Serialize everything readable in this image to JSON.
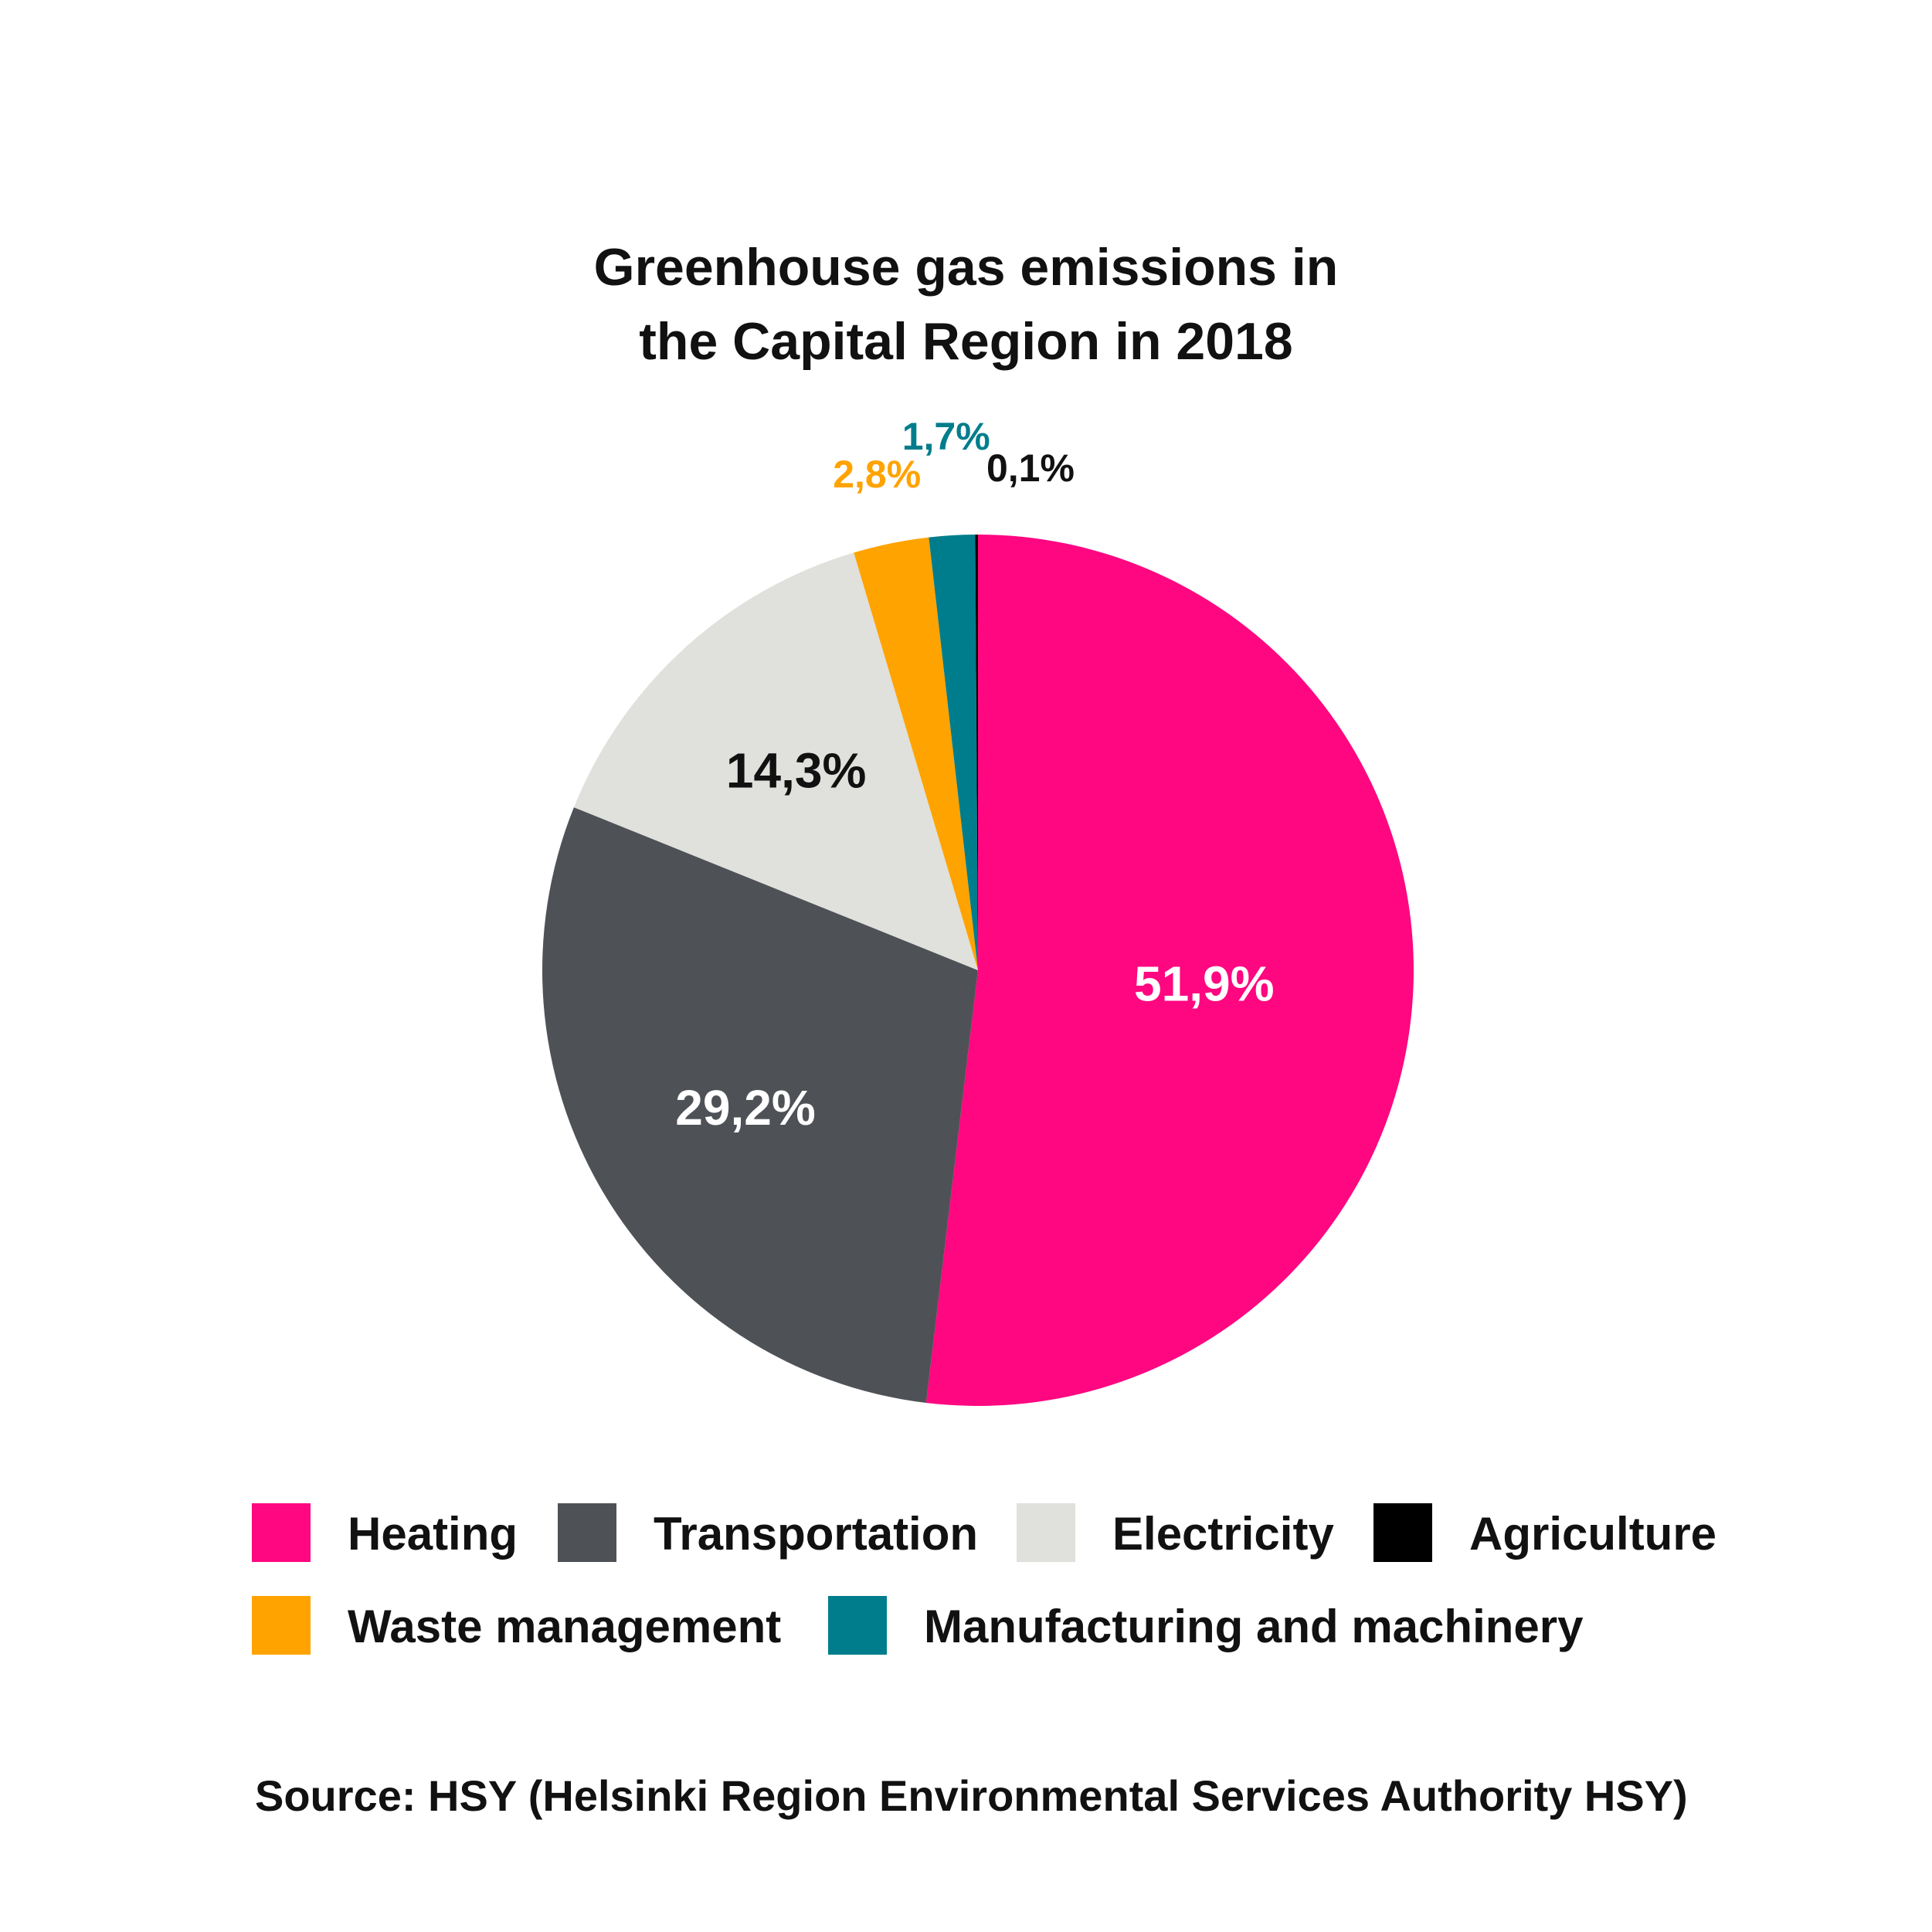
{
  "chart_data": {
    "type": "pie",
    "title": [
      "Greenhouse gas emissions in",
      "the Capital Region in 2018"
    ],
    "slices": [
      {
        "name": "Heating",
        "value": 51.9,
        "label": "51,9%",
        "color": "#ff0781",
        "label_color": "#ffffff"
      },
      {
        "name": "Transportation",
        "value": 29.2,
        "label": "29,2%",
        "color": "#4e5257",
        "label_color": "#ffffff"
      },
      {
        "name": "Electricity",
        "value": 14.3,
        "label": "14,3%",
        "color": "#e0e0dc",
        "label_color": "#111111"
      },
      {
        "name": "Waste management",
        "value": 2.8,
        "label": "2,8%",
        "color": "#ffa300",
        "label_color": "#ffa300"
      },
      {
        "name": "Manufacturing and machinery",
        "value": 1.7,
        "label": "1,7%",
        "color": "#007d8c",
        "label_color": "#007d8c"
      },
      {
        "name": "Agriculture",
        "value": 0.1,
        "label": "0,1%",
        "color": "#000000",
        "label_color": "#111111"
      }
    ],
    "legend_order": [
      "Heating",
      "Transportation",
      "Electricity",
      "Agriculture",
      "Waste management",
      "Manufacturing and machinery"
    ],
    "legend_placement": "bottom",
    "source": "Source: HSY (Helsinki Region Environmental Services Authority HSY)"
  }
}
